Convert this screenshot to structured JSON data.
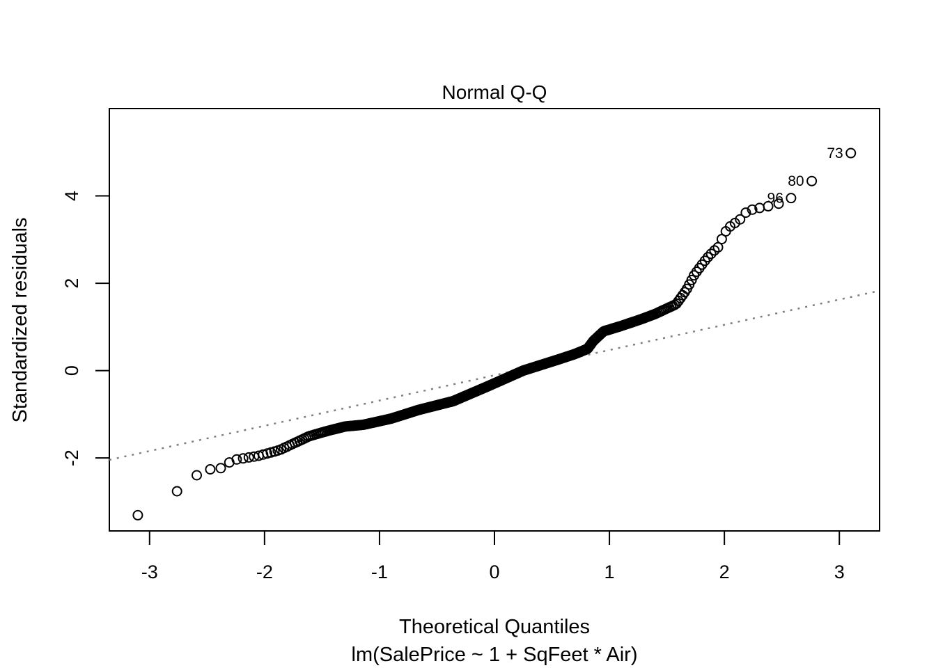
{
  "title": "Normal Q-Q",
  "axes": {
    "xlabel": "Theoretical Quantiles",
    "xlabel2": "lm(SalePrice ~ 1 + SqFeet * Air)",
    "ylabel": "Standardized residuals",
    "x_ticks": [
      "-3",
      "-2",
      "-1",
      "0",
      "1",
      "2",
      "3"
    ],
    "x_tick_values": [
      -3,
      -2,
      -1,
      0,
      1,
      2,
      3
    ],
    "y_ticks": [
      "-2",
      "0",
      "2",
      "4"
    ],
    "y_tick_values": [
      -2,
      0,
      2,
      4
    ],
    "xlim": [
      -3.35,
      3.35
    ],
    "ylim": [
      -3.67,
      6.0
    ]
  },
  "colors": {
    "points": "#000000",
    "reference_line": "#7f7f7f",
    "box": "#000000",
    "background": "#ffffff"
  },
  "chart_data": {
    "type": "scatter",
    "subtype": "normal-qq-plot",
    "title": "Normal Q-Q",
    "xlabel": "Theoretical Quantiles",
    "ylabel": "Standardized residuals",
    "model_caption": "lm(SalePrice ~ 1 + SqFeet * Air)",
    "n_points": 521,
    "theoretical_quantiles_rule": "qnorm((i - 0.5) / 521) for i = 1..521",
    "marker": "open-circle",
    "grid": false,
    "xlim": [
      -3.35,
      3.35
    ],
    "ylim": [
      -3.67,
      6.0
    ],
    "reference_line": {
      "style": "dotted",
      "slope": 0.578,
      "intercept": -0.107
    },
    "empirical_curve_points": [
      [
        -3.1,
        -3.31
      ],
      [
        -2.76,
        -2.76
      ],
      [
        -2.66,
        -2.5
      ],
      [
        -2.58,
        -2.38
      ],
      [
        -2.52,
        -2.28
      ],
      [
        -2.45,
        -2.25
      ],
      [
        -2.37,
        -2.23
      ],
      [
        -2.28,
        -2.05
      ],
      [
        -2.05,
        -1.95
      ],
      [
        -1.87,
        -1.82
      ],
      [
        -1.61,
        -1.5
      ],
      [
        -1.45,
        -1.38
      ],
      [
        -1.3,
        -1.28
      ],
      [
        -1.14,
        -1.24
      ],
      [
        -0.9,
        -1.1
      ],
      [
        -0.66,
        -0.9
      ],
      [
        -0.36,
        -0.7
      ],
      [
        -0.05,
        -0.35
      ],
      [
        0.25,
        0.0
      ],
      [
        0.55,
        0.25
      ],
      [
        0.7,
        0.38
      ],
      [
        0.81,
        0.5
      ],
      [
        0.86,
        0.68
      ],
      [
        0.95,
        0.9
      ],
      [
        1.1,
        1.02
      ],
      [
        1.28,
        1.18
      ],
      [
        1.4,
        1.3
      ],
      [
        1.58,
        1.52
      ],
      [
        1.67,
        1.85
      ],
      [
        1.74,
        2.2
      ],
      [
        1.84,
        2.55
      ],
      [
        1.9,
        2.72
      ],
      [
        1.96,
        2.86
      ],
      [
        1.99,
        3.12
      ],
      [
        2.05,
        3.3
      ],
      [
        2.14,
        3.47
      ],
      [
        2.2,
        3.66
      ],
      [
        2.3,
        3.72
      ],
      [
        2.45,
        3.8
      ],
      [
        2.52,
        3.87
      ]
    ],
    "labeled_outliers": [
      {
        "label": "73",
        "x": 3.1,
        "y": 4.98
      },
      {
        "label": "80",
        "x": 2.76,
        "y": 4.34
      },
      {
        "label": "96",
        "x": 2.58,
        "y": 3.95
      }
    ]
  }
}
